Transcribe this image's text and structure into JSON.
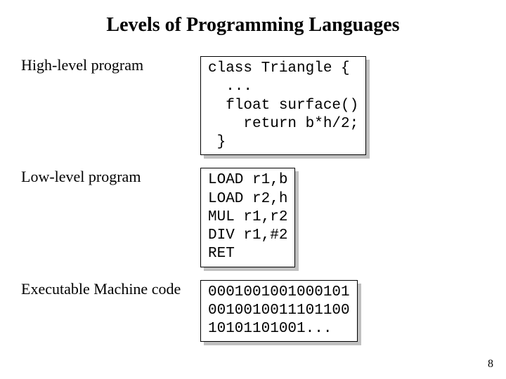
{
  "title": "Levels of Programming Languages",
  "rows": [
    {
      "label": "High-level program",
      "code": "class Triangle {\n  ...\n  float surface()\n    return b*h/2;\n }"
    },
    {
      "label": "Low-level program",
      "code": "LOAD r1,b\nLOAD r2,h\nMUL r1,r2\nDIV r1,#2\nRET"
    },
    {
      "label": "Executable Machine code",
      "code": "0001001001000101\n0010010011101100\n10101101001..."
    }
  ],
  "page_number": "8",
  "colors": {
    "text": "#000000",
    "background": "#ffffff",
    "shadow": "#c0c0c0",
    "border": "#000000"
  }
}
